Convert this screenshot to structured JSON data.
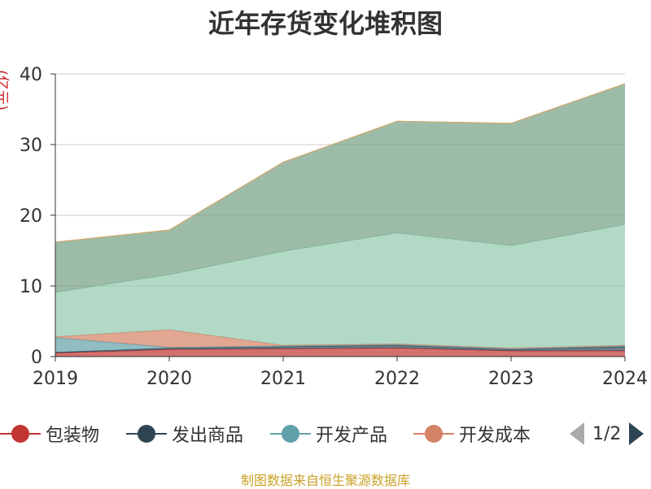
{
  "title": "近年存货变化堆积图",
  "unit_label": "(亿元)",
  "source_note": "制图数据来自恒生聚源数据库",
  "legend": {
    "page_text": "1/2",
    "items": [
      {
        "label": "包装物",
        "color": "#c23531"
      },
      {
        "label": "发出商品",
        "color": "#2f4554"
      },
      {
        "label": "开发产品",
        "color": "#61a0a8"
      },
      {
        "label": "开发成本",
        "color": "#d48265"
      }
    ]
  },
  "chart_data": {
    "type": "area",
    "stacked": true,
    "categories": [
      "2019",
      "2020",
      "2021",
      "2022",
      "2023",
      "2024"
    ],
    "y_ticks": [
      "0",
      "10",
      "20",
      "30",
      "40"
    ],
    "ylim": [
      0,
      40
    ],
    "grid": true,
    "legend_position": "bottom",
    "series": [
      {
        "name": "包装物",
        "color": "#c23531",
        "values": [
          0.5,
          1.0,
          1.1,
          1.2,
          0.8,
          0.8
        ]
      },
      {
        "name": "发出商品",
        "color": "#2f4554",
        "values": [
          0.1,
          0.2,
          0.3,
          0.4,
          0.2,
          0.6
        ]
      },
      {
        "name": "开发产品",
        "color": "#61a0a8",
        "values": [
          2.1,
          0.1,
          0.1,
          0.1,
          0.1,
          0.1
        ]
      },
      {
        "name": "开发成本",
        "color": "#d48265",
        "values": [
          0.1,
          2.5,
          0.1,
          0.1,
          0.1,
          0.1
        ]
      },
      {
        "color": "#91c7ae",
        "values": [
          6.3,
          7.8,
          13.3,
          15.7,
          14.5,
          17.1
        ]
      },
      {
        "color": "#749f83",
        "values": [
          7.1,
          6.3,
          12.6,
          15.8,
          17.3,
          19.9
        ]
      }
    ]
  }
}
